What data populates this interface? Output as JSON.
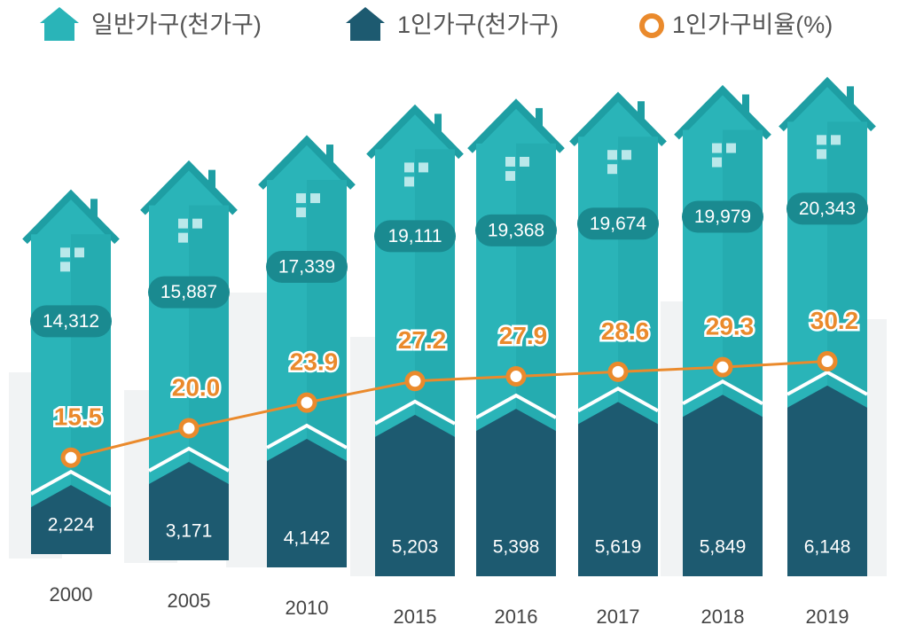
{
  "chart_data": {
    "type": "house-bar-line",
    "categories": [
      "2000",
      "2005",
      "2010",
      "2015",
      "2016",
      "2017",
      "2018",
      "2019"
    ],
    "series": [
      {
        "name": "일반가구(천가구)",
        "color": "#2ab4b8",
        "values": [
          14312,
          15887,
          17339,
          19111,
          19368,
          19674,
          19979,
          20343
        ],
        "value_labels": [
          "14,312",
          "15,887",
          "17,339",
          "19,111",
          "19,368",
          "19,674",
          "19,979",
          "20,343"
        ]
      },
      {
        "name": "1인가구(천가구)",
        "color": "#1d5a70",
        "values": [
          2224,
          3171,
          4142,
          5203,
          5398,
          5619,
          5849,
          6148
        ],
        "value_labels": [
          "2,224",
          "3,171",
          "4,142",
          "5,203",
          "5,398",
          "5,619",
          "5,849",
          "6,148"
        ]
      },
      {
        "name": "1인가구비율(%)",
        "color": "#ea8a2c",
        "values": [
          15.5,
          20.0,
          23.9,
          27.2,
          27.9,
          28.6,
          29.3,
          30.2
        ],
        "value_labels": [
          "15.5",
          "20.0",
          "23.9",
          "27.2",
          "27.9",
          "28.6",
          "29.3",
          "30.2"
        ]
      }
    ]
  }
}
